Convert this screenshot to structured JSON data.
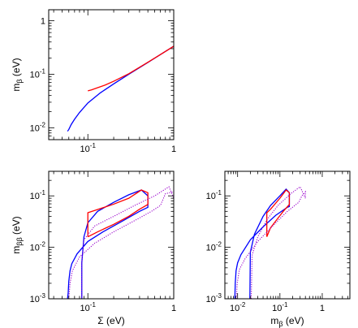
{
  "colors": {
    "normal_hierarchy": "#0000ff",
    "inverted_hierarchy": "#ff0000",
    "extended_range": "#9900cc",
    "axis": "#000000"
  },
  "chart_data": [
    {
      "type": "line",
      "xlabel": "",
      "ylabel": {
        "main": "m",
        "sub": "β",
        "unit": " (eV)"
      },
      "xscale": "log",
      "yscale": "log",
      "xlim": [
        0.035,
        1
      ],
      "ylim": [
        0.006,
        1.6
      ],
      "xticks": [
        {
          "value": 0.1,
          "label": "10",
          "exp": "-1"
        },
        {
          "value": 1,
          "label": "1",
          "exp": ""
        }
      ],
      "yticks": [
        {
          "value": 0.01,
          "label": "10",
          "exp": "-2"
        },
        {
          "value": 0.1,
          "label": "10",
          "exp": "-1"
        },
        {
          "value": 1,
          "label": "1",
          "exp": ""
        }
      ],
      "grid": false,
      "series": [
        {
          "color": "#0000ff",
          "style": "solid",
          "x": [
            0.058,
            0.06,
            0.064,
            0.07,
            0.08,
            0.1,
            0.14,
            0.2,
            0.3,
            0.5,
            0.7,
            1.0
          ],
          "y": [
            0.0086,
            0.0093,
            0.0115,
            0.0144,
            0.0193,
            0.029,
            0.045,
            0.066,
            0.1,
            0.166,
            0.233,
            0.333
          ]
        },
        {
          "color": "#ff0000",
          "style": "solid",
          "x": [
            0.1,
            0.11,
            0.13,
            0.16,
            0.2,
            0.3,
            0.5,
            0.7,
            1.0
          ],
          "y": [
            0.049,
            0.051,
            0.056,
            0.063,
            0.074,
            0.102,
            0.167,
            0.233,
            0.333
          ]
        }
      ]
    },
    {
      "type": "line",
      "xlabel": "Σ (eV)",
      "ylabel": {
        "main": "m",
        "sub": "ββ",
        "unit": " (eV)"
      },
      "xscale": "log",
      "yscale": "log",
      "xlim": [
        0.035,
        1
      ],
      "ylim": [
        0.001,
        0.3
      ],
      "xticks": [
        {
          "value": 0.1,
          "label": "10",
          "exp": "-1"
        },
        {
          "value": 1,
          "label": "1",
          "exp": ""
        }
      ],
      "yticks": [
        {
          "value": 0.001,
          "label": "10",
          "exp": "-3"
        },
        {
          "value": 0.01,
          "label": "10",
          "exp": "-2"
        },
        {
          "value": 0.1,
          "label": "10",
          "exp": "-1"
        }
      ],
      "grid": false,
      "series": [
        {
          "color": "#0000ff",
          "style": "solid",
          "x": [
            0.058,
            0.059,
            0.06,
            0.062,
            0.065,
            0.075,
            0.1,
            0.15,
            0.25,
            0.4,
            0.5,
            0.5,
            0.42,
            0.3,
            0.2,
            0.13,
            0.1,
            0.09,
            0.085,
            0.085
          ],
          "y": [
            0.001,
            0.0013,
            0.0022,
            0.0035,
            0.0048,
            0.0075,
            0.013,
            0.02,
            0.032,
            0.05,
            0.06,
            0.1,
            0.13,
            0.105,
            0.075,
            0.05,
            0.03,
            0.016,
            0.005,
            0.001
          ]
        },
        {
          "color": "#ff0000",
          "style": "solid",
          "x": [
            0.1,
            0.1,
            0.12,
            0.2,
            0.3,
            0.42,
            0.5,
            0.5,
            0.4,
            0.3,
            0.2,
            0.13,
            0.1
          ],
          "y": [
            0.016,
            0.047,
            0.052,
            0.069,
            0.09,
            0.13,
            0.115,
            0.068,
            0.055,
            0.04,
            0.028,
            0.02,
            0.016
          ]
        },
        {
          "color": "#9900cc",
          "style": "dotted",
          "x": [
            0.06,
            0.062,
            0.066,
            0.08,
            0.12,
            0.2,
            0.35,
            0.55,
            0.7,
            0.8,
            1.0,
            1.0,
            0.88,
            0.6,
            0.35,
            0.2,
            0.12,
            0.09,
            0.085,
            0.085
          ],
          "y": [
            0.001,
            0.002,
            0.0035,
            0.0065,
            0.012,
            0.02,
            0.033,
            0.05,
            0.065,
            0.11,
            0.12,
            0.09,
            0.15,
            0.1,
            0.065,
            0.04,
            0.026,
            0.014,
            0.005,
            0.001
          ]
        }
      ]
    },
    {
      "type": "line",
      "xlabel": {
        "main": "m",
        "sub": "β",
        "unit": " (eV)"
      },
      "ylabel": "",
      "xscale": "log",
      "yscale": "log",
      "xlim": [
        0.005,
        4.5
      ],
      "ylim": [
        0.001,
        0.3
      ],
      "xticks": [
        {
          "value": 0.01,
          "label": "10",
          "exp": "-2"
        },
        {
          "value": 0.1,
          "label": "10",
          "exp": "-1"
        },
        {
          "value": 1,
          "label": "1",
          "exp": ""
        }
      ],
      "yticks": [
        {
          "value": 0.001,
          "label": "10",
          "exp": "-3"
        },
        {
          "value": 0.01,
          "label": "10",
          "exp": "-2"
        },
        {
          "value": 0.1,
          "label": "10",
          "exp": "-1"
        }
      ],
      "grid": false,
      "series": [
        {
          "color": "#0000ff",
          "style": "solid",
          "x": [
            0.0086,
            0.0088,
            0.0092,
            0.01,
            0.012,
            0.02,
            0.04,
            0.08,
            0.15,
            0.167,
            0.167,
            0.14,
            0.1,
            0.06,
            0.04,
            0.025,
            0.02,
            0.0195
          ],
          "y": [
            0.001,
            0.002,
            0.0035,
            0.005,
            0.0072,
            0.014,
            0.025,
            0.042,
            0.06,
            0.062,
            0.115,
            0.135,
            0.1,
            0.065,
            0.04,
            0.018,
            0.008,
            0.001
          ]
        },
        {
          "color": "#ff0000",
          "style": "solid",
          "x": [
            0.049,
            0.049,
            0.06,
            0.1,
            0.14,
            0.167,
            0.167,
            0.12,
            0.09,
            0.06,
            0.049
          ],
          "y": [
            0.016,
            0.047,
            0.055,
            0.09,
            0.13,
            0.115,
            0.068,
            0.05,
            0.037,
            0.024,
            0.016
          ]
        },
        {
          "color": "#9900cc",
          "style": "dotted",
          "x": [
            0.0093,
            0.0098,
            0.011,
            0.015,
            0.03,
            0.08,
            0.15,
            0.28,
            0.33,
            0.4,
            0.4,
            0.3,
            0.18,
            0.09,
            0.05,
            0.03,
            0.022,
            0.021
          ],
          "y": [
            0.001,
            0.002,
            0.0037,
            0.006,
            0.013,
            0.03,
            0.05,
            0.075,
            0.1,
            0.12,
            0.09,
            0.15,
            0.11,
            0.065,
            0.035,
            0.016,
            0.007,
            0.001
          ]
        }
      ]
    }
  ]
}
